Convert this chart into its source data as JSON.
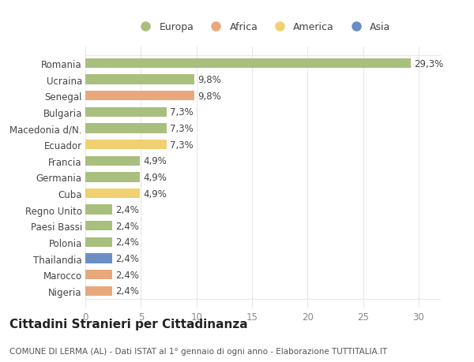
{
  "categories": [
    "Nigeria",
    "Marocco",
    "Thailandia",
    "Polonia",
    "Paesi Bassi",
    "Regno Unito",
    "Cuba",
    "Germania",
    "Francia",
    "Ecuador",
    "Macedonia d/N.",
    "Bulgaria",
    "Senegal",
    "Ucraina",
    "Romania"
  ],
  "values": [
    2.4,
    2.4,
    2.4,
    2.4,
    2.4,
    2.4,
    4.9,
    4.9,
    4.9,
    7.3,
    7.3,
    7.3,
    9.8,
    9.8,
    29.3
  ],
  "bar_colors": [
    "#e8a87c",
    "#e8a87c",
    "#6b8ec4",
    "#a8bf7e",
    "#a8bf7e",
    "#a8bf7e",
    "#f0d070",
    "#a8bf7e",
    "#a8bf7e",
    "#f0d070",
    "#a8bf7e",
    "#a8bf7e",
    "#e8a87c",
    "#a8bf7e",
    "#a8bf7e"
  ],
  "labels": [
    "2,4%",
    "2,4%",
    "2,4%",
    "2,4%",
    "2,4%",
    "2,4%",
    "4,9%",
    "4,9%",
    "4,9%",
    "7,3%",
    "7,3%",
    "7,3%",
    "9,8%",
    "9,8%",
    "29,3%"
  ],
  "legend": [
    {
      "label": "Europa",
      "color": "#a8bf7e"
    },
    {
      "label": "Africa",
      "color": "#e8a87c"
    },
    {
      "label": "America",
      "color": "#f0d070"
    },
    {
      "label": "Asia",
      "color": "#6b8ec4"
    }
  ],
  "title": "Cittadini Stranieri per Cittadinanza",
  "subtitle": "COMUNE DI LERMA (AL) - Dati ISTAT al 1° gennaio di ogni anno - Elaborazione TUTTITALIA.IT",
  "xlim": [
    0,
    32
  ],
  "xticks": [
    0,
    5,
    10,
    15,
    20,
    25,
    30
  ],
  "background_color": "#ffffff",
  "grid_color": "#e8e8e8",
  "bar_height": 0.6,
  "label_fontsize": 8.5,
  "ytick_fontsize": 8.5,
  "xtick_fontsize": 8.5,
  "title_fontsize": 11,
  "subtitle_fontsize": 7.5,
  "legend_fontsize": 9
}
